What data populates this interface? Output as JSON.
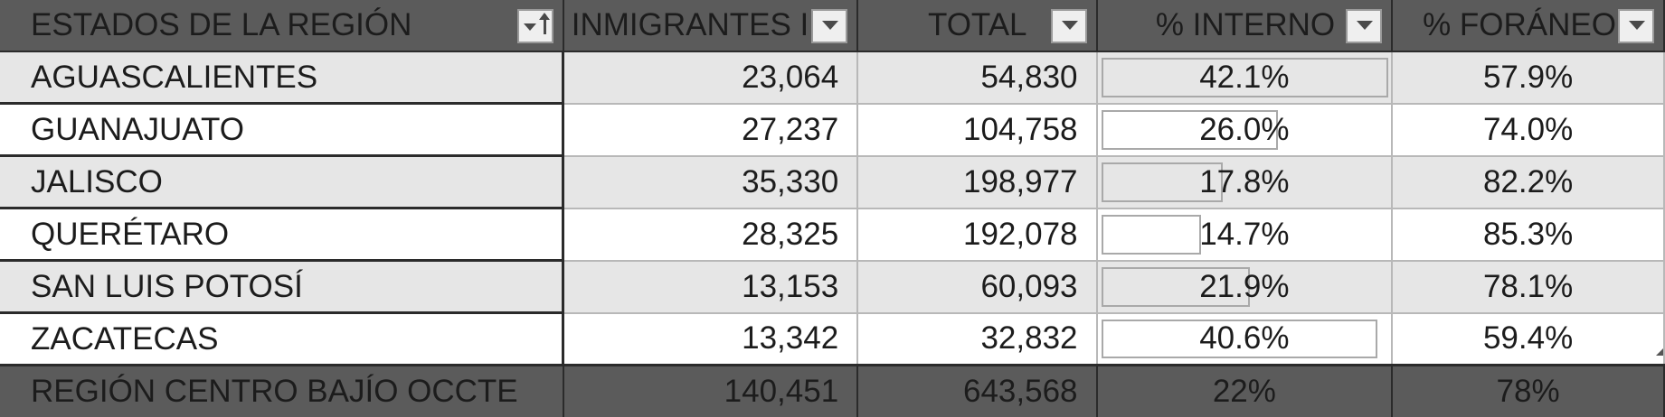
{
  "headers": {
    "state": "ESTADOS DE LA REGIÓN",
    "immigrants": "INMIGRANTES I",
    "total": "TOTAL",
    "internal": "% INTERNO",
    "foreign": "% FORÁNEO"
  },
  "rows": [
    {
      "state": "AGUASCALIENTES",
      "immigrants": "23,064",
      "total": "54,830",
      "internal": "42.1%",
      "foreign": "57.9%",
      "internal_value": 0.421
    },
    {
      "state": "GUANAJUATO",
      "immigrants": "27,237",
      "total": "104,758",
      "internal": "26.0%",
      "foreign": "74.0%",
      "internal_value": 0.26
    },
    {
      "state": "JALISCO",
      "immigrants": "35,330",
      "total": "198,977",
      "internal": "17.8%",
      "foreign": "82.2%",
      "internal_value": 0.178
    },
    {
      "state": "QUERÉTARO",
      "immigrants": "28,325",
      "total": "192,078",
      "internal": "14.7%",
      "foreign": "85.3%",
      "internal_value": 0.147
    },
    {
      "state": "SAN LUIS POTOSÍ",
      "immigrants": "13,153",
      "total": "60,093",
      "internal": "21.9%",
      "foreign": "78.1%",
      "internal_value": 0.219
    },
    {
      "state": "ZACATECAS",
      "immigrants": "13,342",
      "total": "32,832",
      "internal": "40.6%",
      "foreign": "59.4%",
      "internal_value": 0.406
    }
  ],
  "totals": {
    "state": "REGIÓN CENTRO BAJÍO OCCTE",
    "immigrants": "140,451",
    "total": "643,568",
    "internal": "22%",
    "foreign": "78%"
  },
  "colors": {
    "header_bg": "#5b5b5b",
    "header_text": "#ffffff",
    "band_row": "#e6e6e6",
    "data_bar_border": "#a9a9a9"
  },
  "icons": {
    "state_filter": "sort-filter-dropdown-icon",
    "column_filter": "filter-dropdown-icon"
  }
}
